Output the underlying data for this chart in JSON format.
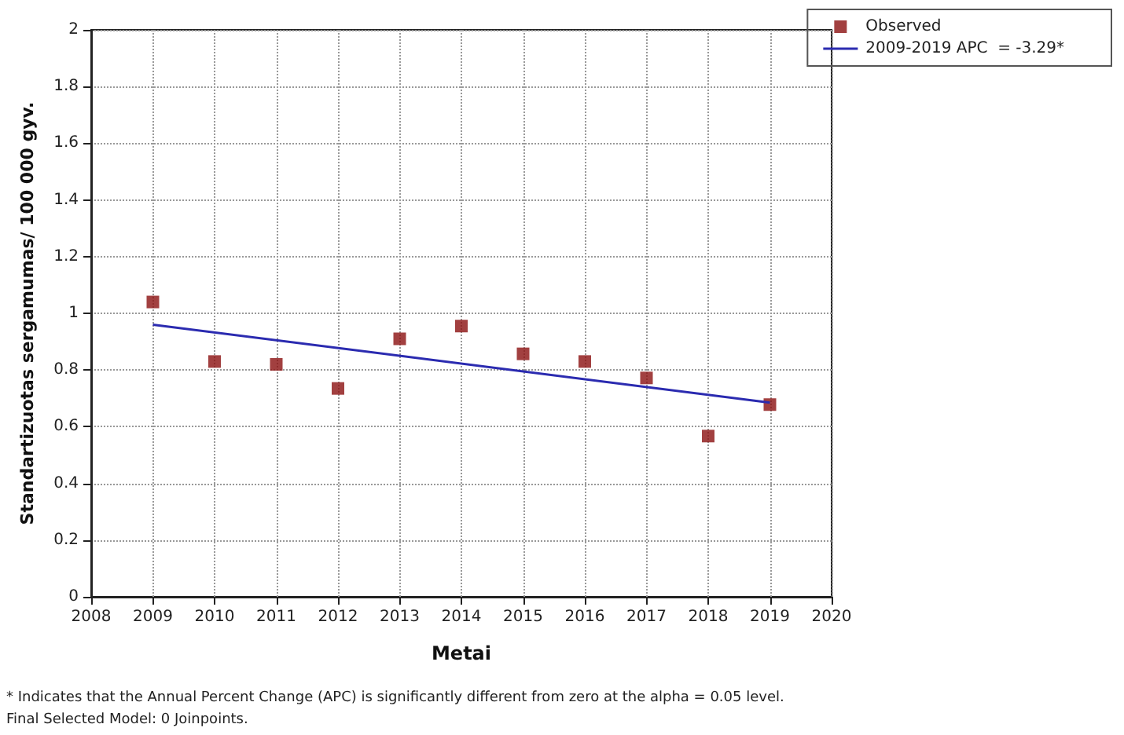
{
  "chart_data": {
    "type": "scatter",
    "xlabel": "Metai",
    "ylabel": "Standartizuotas sergamumas/ 100 000 gyv.",
    "x": [
      2009,
      2010,
      2011,
      2012,
      2013,
      2014,
      2015,
      2016,
      2017,
      2018,
      2019
    ],
    "series": [
      {
        "name": "Observed",
        "marker": "square",
        "color": "#8b1010",
        "values": [
          1.04,
          0.83,
          0.82,
          0.735,
          0.91,
          0.955,
          0.857,
          0.83,
          0.772,
          0.567,
          0.678
        ]
      },
      {
        "name": "2009-2019 APC  = -3.29*",
        "type": "line",
        "marker": "none",
        "line_style": "solid",
        "color": "#2b2bb0",
        "x": [
          2009,
          2019
        ],
        "values": [
          0.96,
          0.685
        ]
      }
    ],
    "xlim": [
      2008,
      2020
    ],
    "xticks": [
      2008,
      2009,
      2010,
      2011,
      2012,
      2013,
      2014,
      2015,
      2016,
      2017,
      2018,
      2019,
      2020
    ],
    "ylim": [
      0,
      2
    ],
    "yticks": [
      0,
      0.2,
      0.4,
      0.6,
      0.8,
      1,
      1.2,
      1.4,
      1.6,
      1.8,
      2
    ],
    "grid": true,
    "legend": "top right",
    "annotations": [
      "* Indicates that the Annual Percent Change (APC) is significantly different from zero at the alpha = 0.05 level.",
      "Final Selected Model: 0 Joinpoints."
    ]
  }
}
